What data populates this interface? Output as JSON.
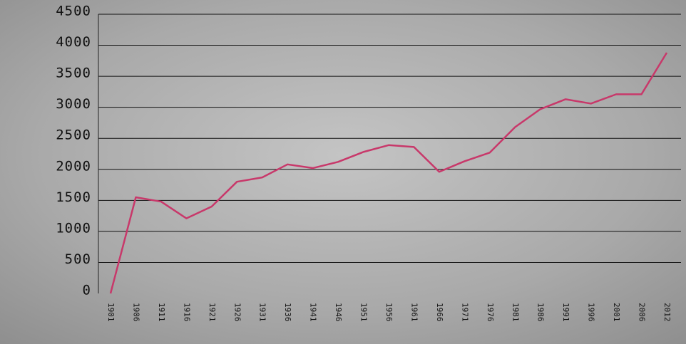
{
  "chart_data": {
    "type": "line",
    "categories": [
      "1901",
      "1906",
      "1911",
      "1916",
      "1921",
      "1926",
      "1931",
      "1936",
      "1941",
      "1946",
      "1951",
      "1956",
      "1961",
      "1966",
      "1971",
      "1976",
      "1981",
      "1986",
      "1991",
      "1996",
      "2001",
      "2006",
      "2012"
    ],
    "series": [
      {
        "color": "#c8386a",
        "values": [
          0,
          1550,
          1480,
          1210,
          1400,
          1800,
          1870,
          2080,
          2020,
          2120,
          2280,
          2390,
          2360,
          1960,
          2130,
          2270,
          2680,
          2970,
          3130,
          3060,
          3210,
          3210,
          3880
        ]
      }
    ],
    "ylim": [
      0,
      4500
    ],
    "yticks": [
      0,
      500,
      1000,
      1500,
      2000,
      2500,
      3000,
      3500,
      4000,
      4500
    ],
    "grid": true
  }
}
